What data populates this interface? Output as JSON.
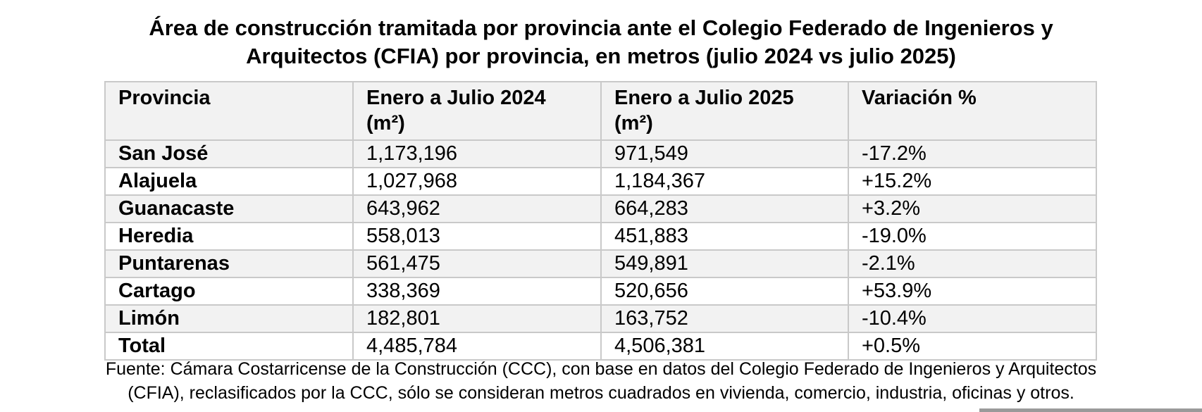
{
  "title": {
    "line1": "Área de construcción tramitada por provincia ante el Colegio Federado de Ingenieros y",
    "line2": "Arquitectos (CFIA) por provincia, en metros (julio 2024 vs julio 2025)"
  },
  "table": {
    "headers": {
      "provincia": "Provincia",
      "y2024_line1": "Enero a Julio 2024",
      "y2024_line2": "(m²)",
      "y2025_line1": "Enero a Julio 2025",
      "y2025_line2": "(m²)",
      "variacion": "Variación %"
    },
    "rows": [
      {
        "provincia": "San José",
        "y2024": "1,173,196",
        "y2025": "971,549",
        "variacion": "-17.2%"
      },
      {
        "provincia": "Alajuela",
        "y2024": "1,027,968",
        "y2025": "1,184,367",
        "variacion": "+15.2%"
      },
      {
        "provincia": "Guanacaste",
        "y2024": "643,962",
        "y2025": "664,283",
        "variacion": "+3.2%"
      },
      {
        "provincia": "Heredia",
        "y2024": "558,013",
        "y2025": "451,883",
        "variacion": "-19.0%"
      },
      {
        "provincia": "Puntarenas",
        "y2024": "561,475",
        "y2025": "549,891",
        "variacion": "-2.1%"
      },
      {
        "provincia": "Cartago",
        "y2024": "338,369",
        "y2025": "520,656",
        "variacion": "+53.9%"
      },
      {
        "provincia": "Limón",
        "y2024": "182,801",
        "y2025": "163,752",
        "variacion": "-10.4%"
      },
      {
        "provincia": "Total",
        "y2024": "4,485,784",
        "y2025": "4,506,381",
        "variacion": "+0.5%"
      }
    ]
  },
  "source": {
    "line1": "Fuente: Cámara Costarricense de la Construcción (CCC), con base en datos del Colegio Federado de Ingenieros y Arquitectos",
    "line2": "(CFIA), reclasificados por la CCC, sólo se consideran metros cuadrados en vivienda, comercio, industria, oficinas y otros."
  }
}
